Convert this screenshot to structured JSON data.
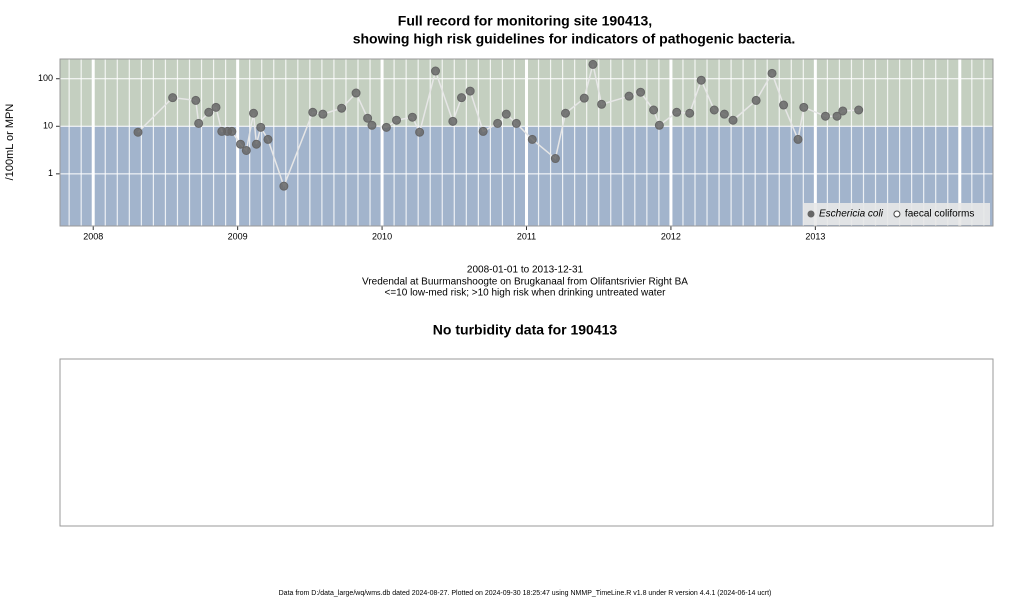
{
  "chart_data": [
    {
      "type": "scatter",
      "title": "Full record for monitoring site 190413,",
      "title_line2": "showing high risk guidelines for indicators of pathogenic bacteria.",
      "y_label": "/100mL or MPN",
      "subtitle_lines": [
        "2008-01-01 to 2013-12-31",
        "Vredendal at Buurmanshoogte on Brugkanaal from Olifantsrivier Right BA",
        "<=10 low-med risk; >10 high risk when drinking untreated water"
      ],
      "log_y": true,
      "risk_threshold": 10,
      "ylim": [
        0.08,
        260
      ],
      "yticks": [
        1,
        10,
        100
      ],
      "xlim": [
        2007.77,
        2014.23
      ],
      "xticks": [
        2008,
        2009,
        2010,
        2011,
        2012,
        2013
      ],
      "legend_position": "bottom-right",
      "series": [
        {
          "name": "Eschericia coli",
          "color": "#666666",
          "marker": "filled",
          "x": [
            2008.31,
            2008.55,
            2008.71,
            2008.73,
            2008.8,
            2008.85,
            2008.89,
            2008.93,
            2008.96,
            2009.02,
            2009.06,
            2009.11,
            2009.13,
            2009.16,
            2009.21,
            2009.32,
            2009.52,
            2009.59,
            2009.72,
            2009.82,
            2009.9,
            2009.93,
            2010.03,
            2010.1,
            2010.21,
            2010.26,
            2010.37,
            2010.49,
            2010.55,
            2010.61,
            2010.7,
            2010.8,
            2010.86,
            2010.93,
            2011.04,
            2011.2,
            2011.27,
            2011.4,
            2011.46,
            2011.52,
            2011.71,
            2011.79,
            2011.88,
            2011.92,
            2012.04,
            2012.13,
            2012.21,
            2012.3,
            2012.37,
            2012.43,
            2012.59,
            2012.7,
            2012.78,
            2012.88,
            2012.92,
            2013.07,
            2013.15,
            2013.19,
            2013.3
          ],
          "values": [
            7.5,
            40,
            35,
            11.5,
            19.7,
            25,
            7.8,
            7.8,
            7.8,
            4.2,
            3.1,
            18.8,
            4.2,
            9.5,
            5.3,
            0.55,
            19.7,
            18,
            24,
            50,
            14.8,
            10.5,
            9.5,
            13.4,
            15.5,
            7.5,
            145,
            12.7,
            40,
            55,
            7.8,
            11.5,
            18,
            11.5,
            5.3,
            2.1,
            18.8,
            39,
            200,
            29,
            43,
            52,
            22,
            10.5,
            19.7,
            18.8,
            93,
            22,
            18,
            13.4,
            35,
            130,
            28,
            5.3,
            25,
            16.3,
            16.3,
            21,
            22
          ]
        },
        {
          "name": "faecal coliforms",
          "color": "#444444",
          "marker": "open",
          "x": [],
          "values": []
        }
      ]
    },
    {
      "type": "empty",
      "title": "No turbidity data for 190413"
    }
  ],
  "footer": "Data from D:/data_large/wq/wms.db dated 2024-08-27. Plotted on 2024-09-30 18:25:47 using NMMP_TimeLine.R v1.8 under R version 4.4.1 (2024-06-14 ucrt)"
}
